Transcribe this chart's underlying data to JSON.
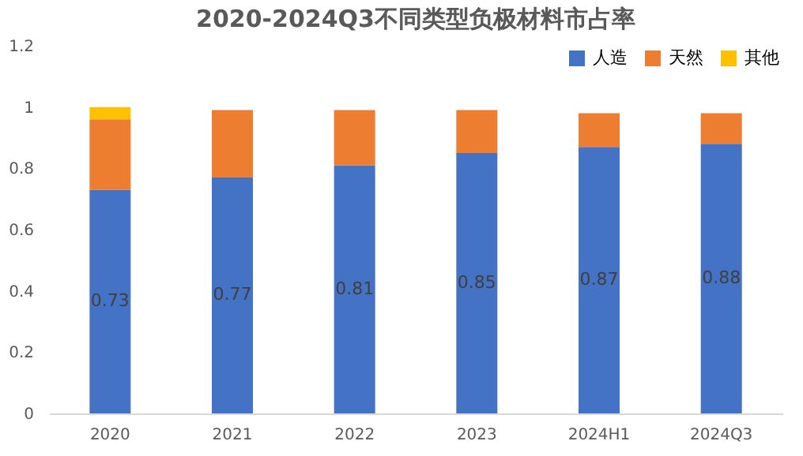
{
  "chart_data": {
    "type": "bar",
    "title": "2020-2024Q3不同类型负极材料市占率",
    "categories": [
      "2020",
      "2021",
      "2022",
      "2023",
      "2024H1",
      "2024Q3"
    ],
    "series": [
      {
        "name": "人造",
        "color": "#4472c4",
        "values": [
          0.73,
          0.77,
          0.81,
          0.85,
          0.87,
          0.88
        ],
        "value_labels": [
          "0.73",
          "0.77",
          "0.81",
          "0.85",
          "0.87",
          "0.88"
        ]
      },
      {
        "name": "天然",
        "color": "#ed7d31",
        "values": [
          0.23,
          0.22,
          0.18,
          0.14,
          0.11,
          0.1
        ]
      },
      {
        "name": "其他",
        "color": "#ffc000",
        "values": [
          0.04,
          null,
          null,
          null,
          null,
          null
        ]
      }
    ],
    "stacked": true,
    "ylim": [
      0,
      1.2
    ],
    "yticks": [
      0,
      0.2,
      0.4,
      0.6,
      0.8,
      1,
      1.2
    ],
    "grid": false,
    "legend": "top right"
  }
}
